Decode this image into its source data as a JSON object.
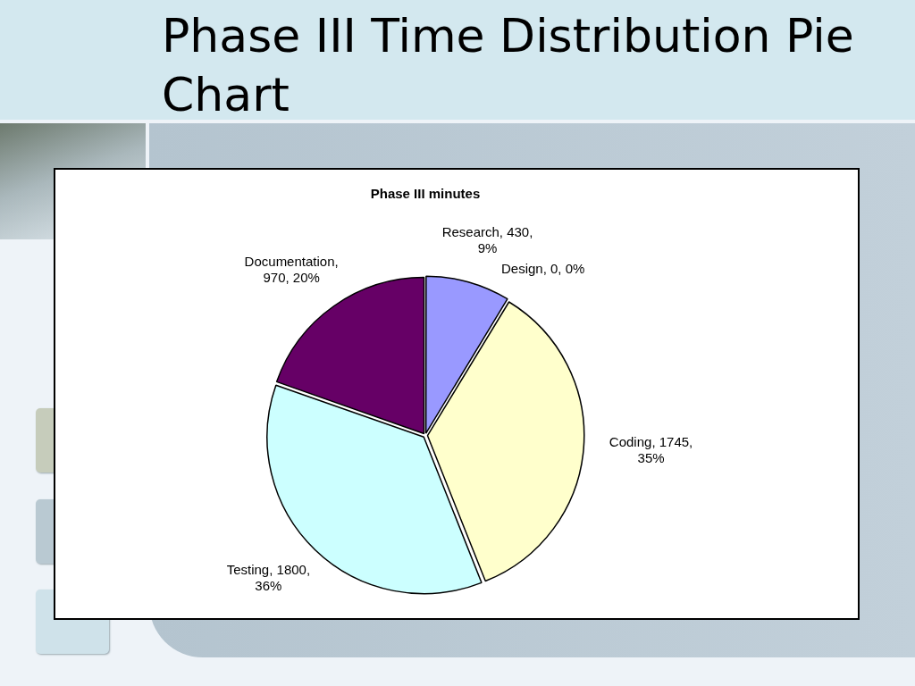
{
  "chart_data": {
    "type": "pie",
    "title": "Phase III Time Distribution Pie Chart",
    "subtitle": "Phase III minutes",
    "categories": [
      "Research",
      "Design",
      "Coding",
      "Testing",
      "Documentation"
    ],
    "values": [
      430,
      0,
      1745,
      1800,
      970
    ],
    "colors": [
      "#9999ff",
      "#993366",
      "#ffffcc",
      "#ccffff",
      "#660066"
    ],
    "value_labels": [
      ", 430, 9%",
      ", 0, 0%",
      ", 1745, 35%",
      ", 1800, 36%",
      ", 970, 20%"
    ]
  }
}
